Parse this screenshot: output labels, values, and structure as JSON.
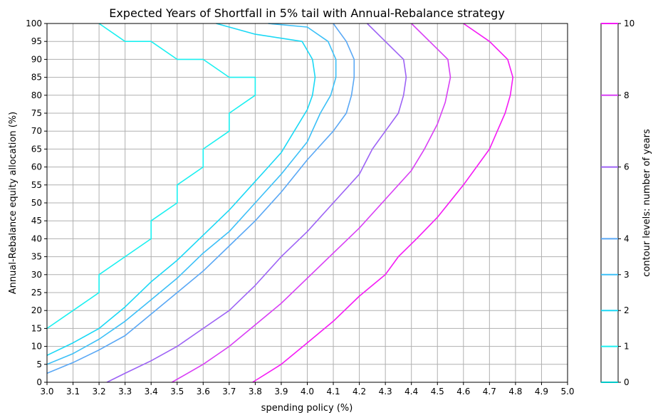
{
  "chart_data": {
    "type": "contour",
    "title": "Expected Years of Shortfall in 5% tail with Annual-Rebalance strategy",
    "xlabel": "spending policy (%)",
    "ylabel": "Annual-Rebalance equity allocation (%)",
    "xlim": [
      3.0,
      5.0
    ],
    "ylim": [
      0,
      100
    ],
    "xticks": [
      "3.0",
      "3.1",
      "3.2",
      "3.3",
      "3.4",
      "3.5",
      "3.6",
      "3.7",
      "3.8",
      "3.9",
      "4.0",
      "4.1",
      "4.2",
      "4.3",
      "4.4",
      "4.5",
      "4.6",
      "4.7",
      "4.8",
      "4.9",
      "5.0"
    ],
    "yticks": [
      "0",
      "5",
      "10",
      "15",
      "20",
      "25",
      "30",
      "35",
      "40",
      "45",
      "50",
      "55",
      "60",
      "65",
      "70",
      "75",
      "80",
      "85",
      "90",
      "95",
      "100"
    ],
    "grid": true,
    "colorbar": {
      "label": "contour levels: number of years",
      "ticks": [
        "0",
        "1",
        "2",
        "3",
        "4",
        "6",
        "8",
        "10"
      ],
      "levels": [
        0,
        1,
        2,
        3,
        4,
        6,
        8,
        10
      ]
    },
    "series": [
      {
        "level": 1,
        "color": "#1af0f0",
        "points": [
          [
            3.0,
            15
          ],
          [
            3.1,
            20
          ],
          [
            3.2,
            25
          ],
          [
            3.2,
            30
          ],
          [
            3.3,
            35
          ],
          [
            3.4,
            40
          ],
          [
            3.4,
            45
          ],
          [
            3.5,
            50
          ],
          [
            3.5,
            55
          ],
          [
            3.6,
            60
          ],
          [
            3.6,
            65
          ],
          [
            3.7,
            70
          ],
          [
            3.7,
            75
          ],
          [
            3.8,
            80
          ],
          [
            3.8,
            85
          ],
          [
            3.7,
            85
          ],
          [
            3.6,
            90
          ],
          [
            3.5,
            90
          ],
          [
            3.4,
            95
          ],
          [
            3.3,
            95
          ],
          [
            3.2,
            100
          ]
        ]
      },
      {
        "level": 2,
        "color": "#1ad8f5",
        "points": [
          [
            3.0,
            7.5
          ],
          [
            3.1,
            11
          ],
          [
            3.2,
            15
          ],
          [
            3.3,
            21
          ],
          [
            3.4,
            28
          ],
          [
            3.5,
            34
          ],
          [
            3.6,
            41
          ],
          [
            3.7,
            48
          ],
          [
            3.8,
            56
          ],
          [
            3.85,
            60
          ],
          [
            3.9,
            64
          ],
          [
            3.95,
            70
          ],
          [
            4.0,
            76
          ],
          [
            4.02,
            80
          ],
          [
            4.03,
            85
          ],
          [
            4.02,
            90
          ],
          [
            3.98,
            95
          ],
          [
            3.8,
            97
          ],
          [
            3.7,
            99
          ],
          [
            3.65,
            100
          ]
        ]
      },
      {
        "level": 3,
        "color": "#3cc0f7",
        "points": [
          [
            3.0,
            5
          ],
          [
            3.1,
            8
          ],
          [
            3.2,
            12
          ],
          [
            3.3,
            17
          ],
          [
            3.4,
            23
          ],
          [
            3.5,
            29
          ],
          [
            3.6,
            36
          ],
          [
            3.7,
            42
          ],
          [
            3.8,
            50
          ],
          [
            3.9,
            58
          ],
          [
            4.0,
            67
          ],
          [
            4.05,
            75
          ],
          [
            4.09,
            80
          ],
          [
            4.11,
            85
          ],
          [
            4.11,
            90
          ],
          [
            4.08,
            95
          ],
          [
            4.0,
            99
          ],
          [
            3.85,
            100
          ]
        ]
      },
      {
        "level": 4,
        "color": "#5aa8f5",
        "points": [
          [
            3.0,
            2.5
          ],
          [
            3.1,
            5.5
          ],
          [
            3.2,
            9
          ],
          [
            3.3,
            13
          ],
          [
            3.4,
            19
          ],
          [
            3.5,
            25
          ],
          [
            3.6,
            31
          ],
          [
            3.7,
            38
          ],
          [
            3.8,
            45
          ],
          [
            3.9,
            53
          ],
          [
            4.0,
            62
          ],
          [
            4.1,
            70
          ],
          [
            4.15,
            75
          ],
          [
            4.17,
            80
          ],
          [
            4.18,
            85
          ],
          [
            4.18,
            90
          ],
          [
            4.15,
            95
          ],
          [
            4.1,
            100
          ]
        ]
      },
      {
        "level": 6,
        "color": "#9d63f5",
        "points": [
          [
            3.23,
            0
          ],
          [
            3.3,
            2.5
          ],
          [
            3.4,
            6
          ],
          [
            3.5,
            10
          ],
          [
            3.6,
            15
          ],
          [
            3.7,
            20
          ],
          [
            3.8,
            27
          ],
          [
            3.9,
            35
          ],
          [
            4.0,
            42
          ],
          [
            4.1,
            50
          ],
          [
            4.2,
            58
          ],
          [
            4.25,
            65
          ],
          [
            4.3,
            70
          ],
          [
            4.35,
            75
          ],
          [
            4.37,
            80
          ],
          [
            4.38,
            85
          ],
          [
            4.37,
            90
          ],
          [
            4.3,
            95
          ],
          [
            4.23,
            100
          ]
        ]
      },
      {
        "level": 8,
        "color": "#d83ff5",
        "points": [
          [
            3.48,
            0
          ],
          [
            3.6,
            5
          ],
          [
            3.7,
            10
          ],
          [
            3.8,
            16
          ],
          [
            3.9,
            22
          ],
          [
            4.0,
            29
          ],
          [
            4.1,
            36
          ],
          [
            4.2,
            43
          ],
          [
            4.3,
            51
          ],
          [
            4.4,
            59
          ],
          [
            4.45,
            65
          ],
          [
            4.5,
            72
          ],
          [
            4.53,
            78
          ],
          [
            4.55,
            85
          ],
          [
            4.54,
            90
          ],
          [
            4.47,
            95
          ],
          [
            4.4,
            100
          ]
        ]
      },
      {
        "level": 10,
        "color": "#f51af5",
        "points": [
          [
            3.79,
            0
          ],
          [
            3.9,
            5
          ],
          [
            4.0,
            11
          ],
          [
            4.1,
            17
          ],
          [
            4.2,
            24
          ],
          [
            4.3,
            30
          ],
          [
            4.35,
            35
          ],
          [
            4.42,
            40
          ],
          [
            4.5,
            46
          ],
          [
            4.6,
            55
          ],
          [
            4.65,
            60
          ],
          [
            4.7,
            65
          ],
          [
            4.73,
            70
          ],
          [
            4.76,
            75
          ],
          [
            4.78,
            80
          ],
          [
            4.79,
            85
          ],
          [
            4.77,
            90
          ],
          [
            4.7,
            95
          ],
          [
            4.6,
            100
          ]
        ]
      }
    ]
  }
}
